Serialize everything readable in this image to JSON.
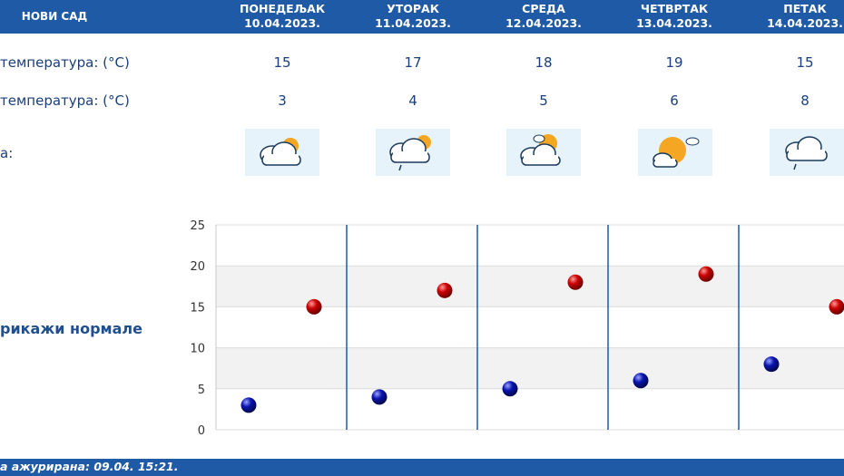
{
  "header": {
    "city": "НОВИ САД",
    "days": [
      {
        "name": "ПОНЕДЕЉАК",
        "date": "10.04.2023."
      },
      {
        "name": "УТОРАК",
        "date": "11.04.2023."
      },
      {
        "name": "СРЕДА",
        "date": "12.04.2023."
      },
      {
        "name": "ЧЕТВРТАК",
        "date": "13.04.2023."
      },
      {
        "name": "ПЕТАК",
        "date": "14.04.2023."
      }
    ]
  },
  "rows": {
    "max_label": "температура: (°C)",
    "min_label": "температура: (°C)",
    "icon_label": "а:",
    "max_values": [
      "15",
      "17",
      "18",
      "19",
      "15"
    ],
    "min_values": [
      "3",
      "4",
      "5",
      "6",
      "8"
    ]
  },
  "weather_icons": [
    "partly-cloudy-icon",
    "cloud-sun-drizzle-icon",
    "partly-cloudy-icon",
    "mostly-sunny-icon",
    "cloud-drizzle-icon"
  ],
  "normals_link": "рикажи нормале",
  "footer": {
    "updated": "а ажурирана:  09.04.  15:21."
  },
  "colors": {
    "header_bg": "#1f5aa6",
    "max_dot": "#cc0000",
    "min_dot": "#0a14b0",
    "divider": "#1f5aa6",
    "icon_bg": "#e6f3fb"
  },
  "chart_data": {
    "type": "scatter",
    "categories": [
      "10.04.2023.",
      "11.04.2023.",
      "12.04.2023.",
      "13.04.2023.",
      "14.04.2023."
    ],
    "series": [
      {
        "values": [
          15,
          17,
          18,
          19,
          15
        ]
      },
      {
        "values": [
          3,
          4,
          5,
          6,
          8
        ]
      }
    ],
    "ylim": [
      0,
      25
    ],
    "yticks": [
      "0",
      "5",
      "10",
      "15",
      "20",
      "25"
    ],
    "grid": true
  }
}
